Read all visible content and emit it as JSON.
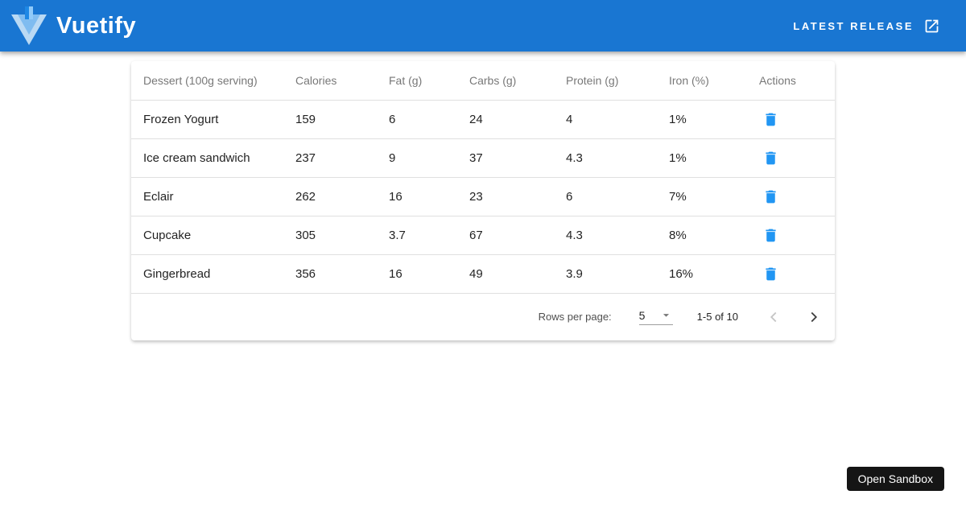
{
  "app_bar": {
    "brand": "Vuetify",
    "latest_release_label": "LATEST RELEASE"
  },
  "table": {
    "headers": [
      "Dessert (100g serving)",
      "Calories",
      "Fat (g)",
      "Carbs (g)",
      "Protein (g)",
      "Iron (%)",
      "Actions"
    ],
    "rows": [
      {
        "name": "Frozen Yogurt",
        "calories": "159",
        "fat": "6",
        "carbs": "24",
        "protein": "4",
        "iron": "1%"
      },
      {
        "name": "Ice cream sandwich",
        "calories": "237",
        "fat": "9",
        "carbs": "37",
        "protein": "4.3",
        "iron": "1%"
      },
      {
        "name": "Eclair",
        "calories": "262",
        "fat": "16",
        "carbs": "23",
        "protein": "6",
        "iron": "7%"
      },
      {
        "name": "Cupcake",
        "calories": "305",
        "fat": "3.7",
        "carbs": "67",
        "protein": "4.3",
        "iron": "8%"
      },
      {
        "name": "Gingerbread",
        "calories": "356",
        "fat": "16",
        "carbs": "49",
        "protein": "3.9",
        "iron": "16%"
      }
    ],
    "pagination": {
      "rows_per_page_label": "Rows per page:",
      "rows_per_page_value": "5",
      "range_text": "1-5 of 10",
      "prev_disabled": true,
      "next_disabled": false
    }
  },
  "sandbox": {
    "label": "Open Sandbox"
  },
  "icons": {
    "brand": "vuetify-logo",
    "latest_release": "open-in-new-icon",
    "row_action": "delete-icon",
    "select_arrow": "caret-down-icon",
    "pagination_prev": "chevron-left-icon",
    "pagination_next": "chevron-right-icon"
  },
  "colors": {
    "app_bar": "#1976d2",
    "accent": "#2196f3",
    "divider": "#e0e0e0",
    "sandbox_button_bg": "#151515"
  }
}
